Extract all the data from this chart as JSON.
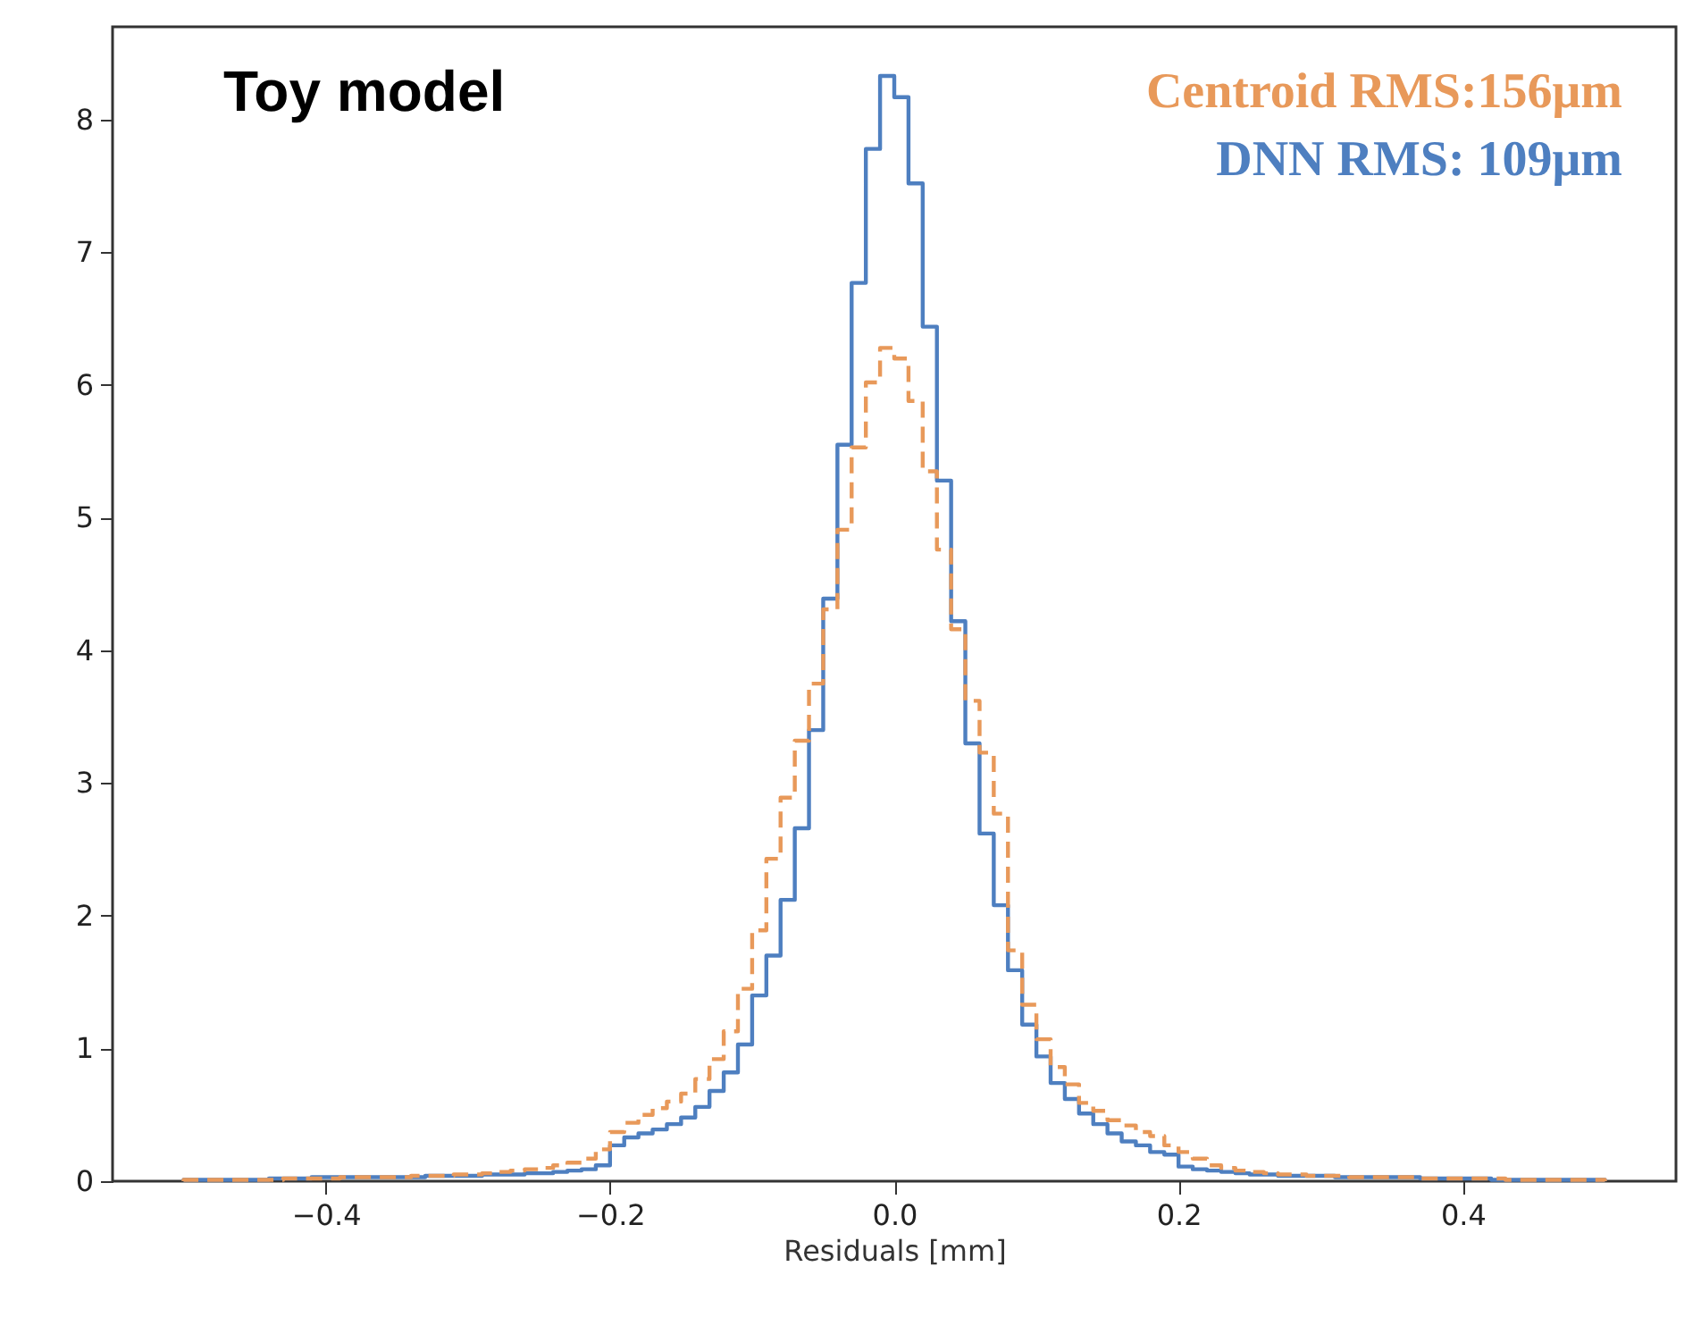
{
  "chart_data": {
    "type": "histogram",
    "title": "Toy model",
    "xlabel": "Residuals [mm]",
    "bins": [
      -0.5,
      -0.49,
      -0.48,
      -0.47,
      -0.46,
      -0.45,
      -0.44,
      -0.43,
      -0.42,
      -0.41,
      -0.4,
      -0.39,
      -0.38,
      -0.37,
      -0.36,
      -0.35,
      -0.34,
      -0.33,
      -0.32,
      -0.31,
      -0.3,
      -0.29,
      -0.28,
      -0.27,
      -0.26,
      -0.25,
      -0.24,
      -0.23,
      -0.22,
      -0.21,
      -0.2,
      -0.19,
      -0.18,
      -0.17,
      -0.16,
      -0.15,
      -0.14,
      -0.13,
      -0.12,
      -0.11,
      -0.1,
      -0.09,
      -0.08,
      -0.07,
      -0.06,
      -0.05,
      -0.04,
      -0.03,
      -0.02,
      -0.01,
      0,
      0.01,
      0.02,
      0.03,
      0.04,
      0.05,
      0.06,
      0.07,
      0.08,
      0.09,
      0.1,
      0.11,
      0.12,
      0.13,
      0.14,
      0.15,
      0.16,
      0.17,
      0.18,
      0.19,
      0.2,
      0.21,
      0.22,
      0.23,
      0.24,
      0.25,
      0.26,
      0.27,
      0.28,
      0.29,
      0.3,
      0.31,
      0.32,
      0.33,
      0.34,
      0.35,
      0.36,
      0.37,
      0.38,
      0.39,
      0.4,
      0.41,
      0.42,
      0.43,
      0.44,
      0.45,
      0.46,
      0.47,
      0.48,
      0.49,
      0.5
    ],
    "series": [
      {
        "name": "DNN RMS: 109μm",
        "color": "#4e7fc0",
        "line_style": "solid",
        "values": [
          0.01,
          0.01,
          0.01,
          0.01,
          0.01,
          0.01,
          0.02,
          0.02,
          0.02,
          0.03,
          0.03,
          0.03,
          0.03,
          0.03,
          0.03,
          0.03,
          0.03,
          0.04,
          0.04,
          0.04,
          0.04,
          0.05,
          0.05,
          0.05,
          0.06,
          0.06,
          0.07,
          0.08,
          0.09,
          0.12,
          0.27,
          0.33,
          0.36,
          0.39,
          0.43,
          0.48,
          0.56,
          0.68,
          0.82,
          1.03,
          1.4,
          1.7,
          2.12,
          2.66,
          3.4,
          4.39,
          5.55,
          6.77,
          7.78,
          8.33,
          8.17,
          7.52,
          6.44,
          5.28,
          4.22,
          3.3,
          2.62,
          2.08,
          1.59,
          1.18,
          0.94,
          0.74,
          0.62,
          0.51,
          0.43,
          0.36,
          0.3,
          0.27,
          0.22,
          0.2,
          0.11,
          0.09,
          0.08,
          0.07,
          0.06,
          0.05,
          0.05,
          0.04,
          0.04,
          0.04,
          0.04,
          0.03,
          0.03,
          0.03,
          0.03,
          0.03,
          0.03,
          0.02,
          0.02,
          0.02,
          0.02,
          0.02,
          0.01,
          0.01,
          0.01,
          0.01,
          0.01,
          0.01,
          0.01,
          0.01
        ]
      },
      {
        "name": "Centroid RMS:156μm",
        "color": "#e8995a",
        "line_style": "dashed",
        "values": [
          0.01,
          0.01,
          0.01,
          0.01,
          0.01,
          0.01,
          0.01,
          0.02,
          0.02,
          0.02,
          0.02,
          0.03,
          0.03,
          0.03,
          0.03,
          0.03,
          0.04,
          0.04,
          0.04,
          0.05,
          0.05,
          0.06,
          0.07,
          0.08,
          0.09,
          0.1,
          0.12,
          0.14,
          0.17,
          0.24,
          0.37,
          0.44,
          0.5,
          0.55,
          0.6,
          0.66,
          0.77,
          0.92,
          1.13,
          1.45,
          1.89,
          2.43,
          2.89,
          3.32,
          3.75,
          4.31,
          4.91,
          5.53,
          6.02,
          6.28,
          6.2,
          5.88,
          5.35,
          4.76,
          4.16,
          3.62,
          3.23,
          2.77,
          1.74,
          1.33,
          1.07,
          0.86,
          0.73,
          0.59,
          0.53,
          0.46,
          0.42,
          0.37,
          0.34,
          0.27,
          0.22,
          0.17,
          0.12,
          0.1,
          0.08,
          0.07,
          0.06,
          0.05,
          0.05,
          0.04,
          0.04,
          0.04,
          0.03,
          0.03,
          0.03,
          0.03,
          0.03,
          0.02,
          0.02,
          0.02,
          0.02,
          0.02,
          0.02,
          0.01,
          0.01,
          0.01,
          0.01,
          0.01,
          0.01,
          0.01
        ]
      }
    ],
    "legend": "top right",
    "xlim": [
      -0.55,
      0.55
    ],
    "ylim": [
      0,
      8.7
    ],
    "xticks": [
      {
        "value": -0.4,
        "label": "−0.4"
      },
      {
        "value": -0.2,
        "label": "−0.2"
      },
      {
        "value": 0,
        "label": "0.0"
      },
      {
        "value": 0.2,
        "label": "0.2"
      },
      {
        "value": 0.4,
        "label": "0.4"
      }
    ],
    "yticks": [
      0,
      1,
      2,
      3,
      4,
      5,
      6,
      7,
      8
    ]
  }
}
